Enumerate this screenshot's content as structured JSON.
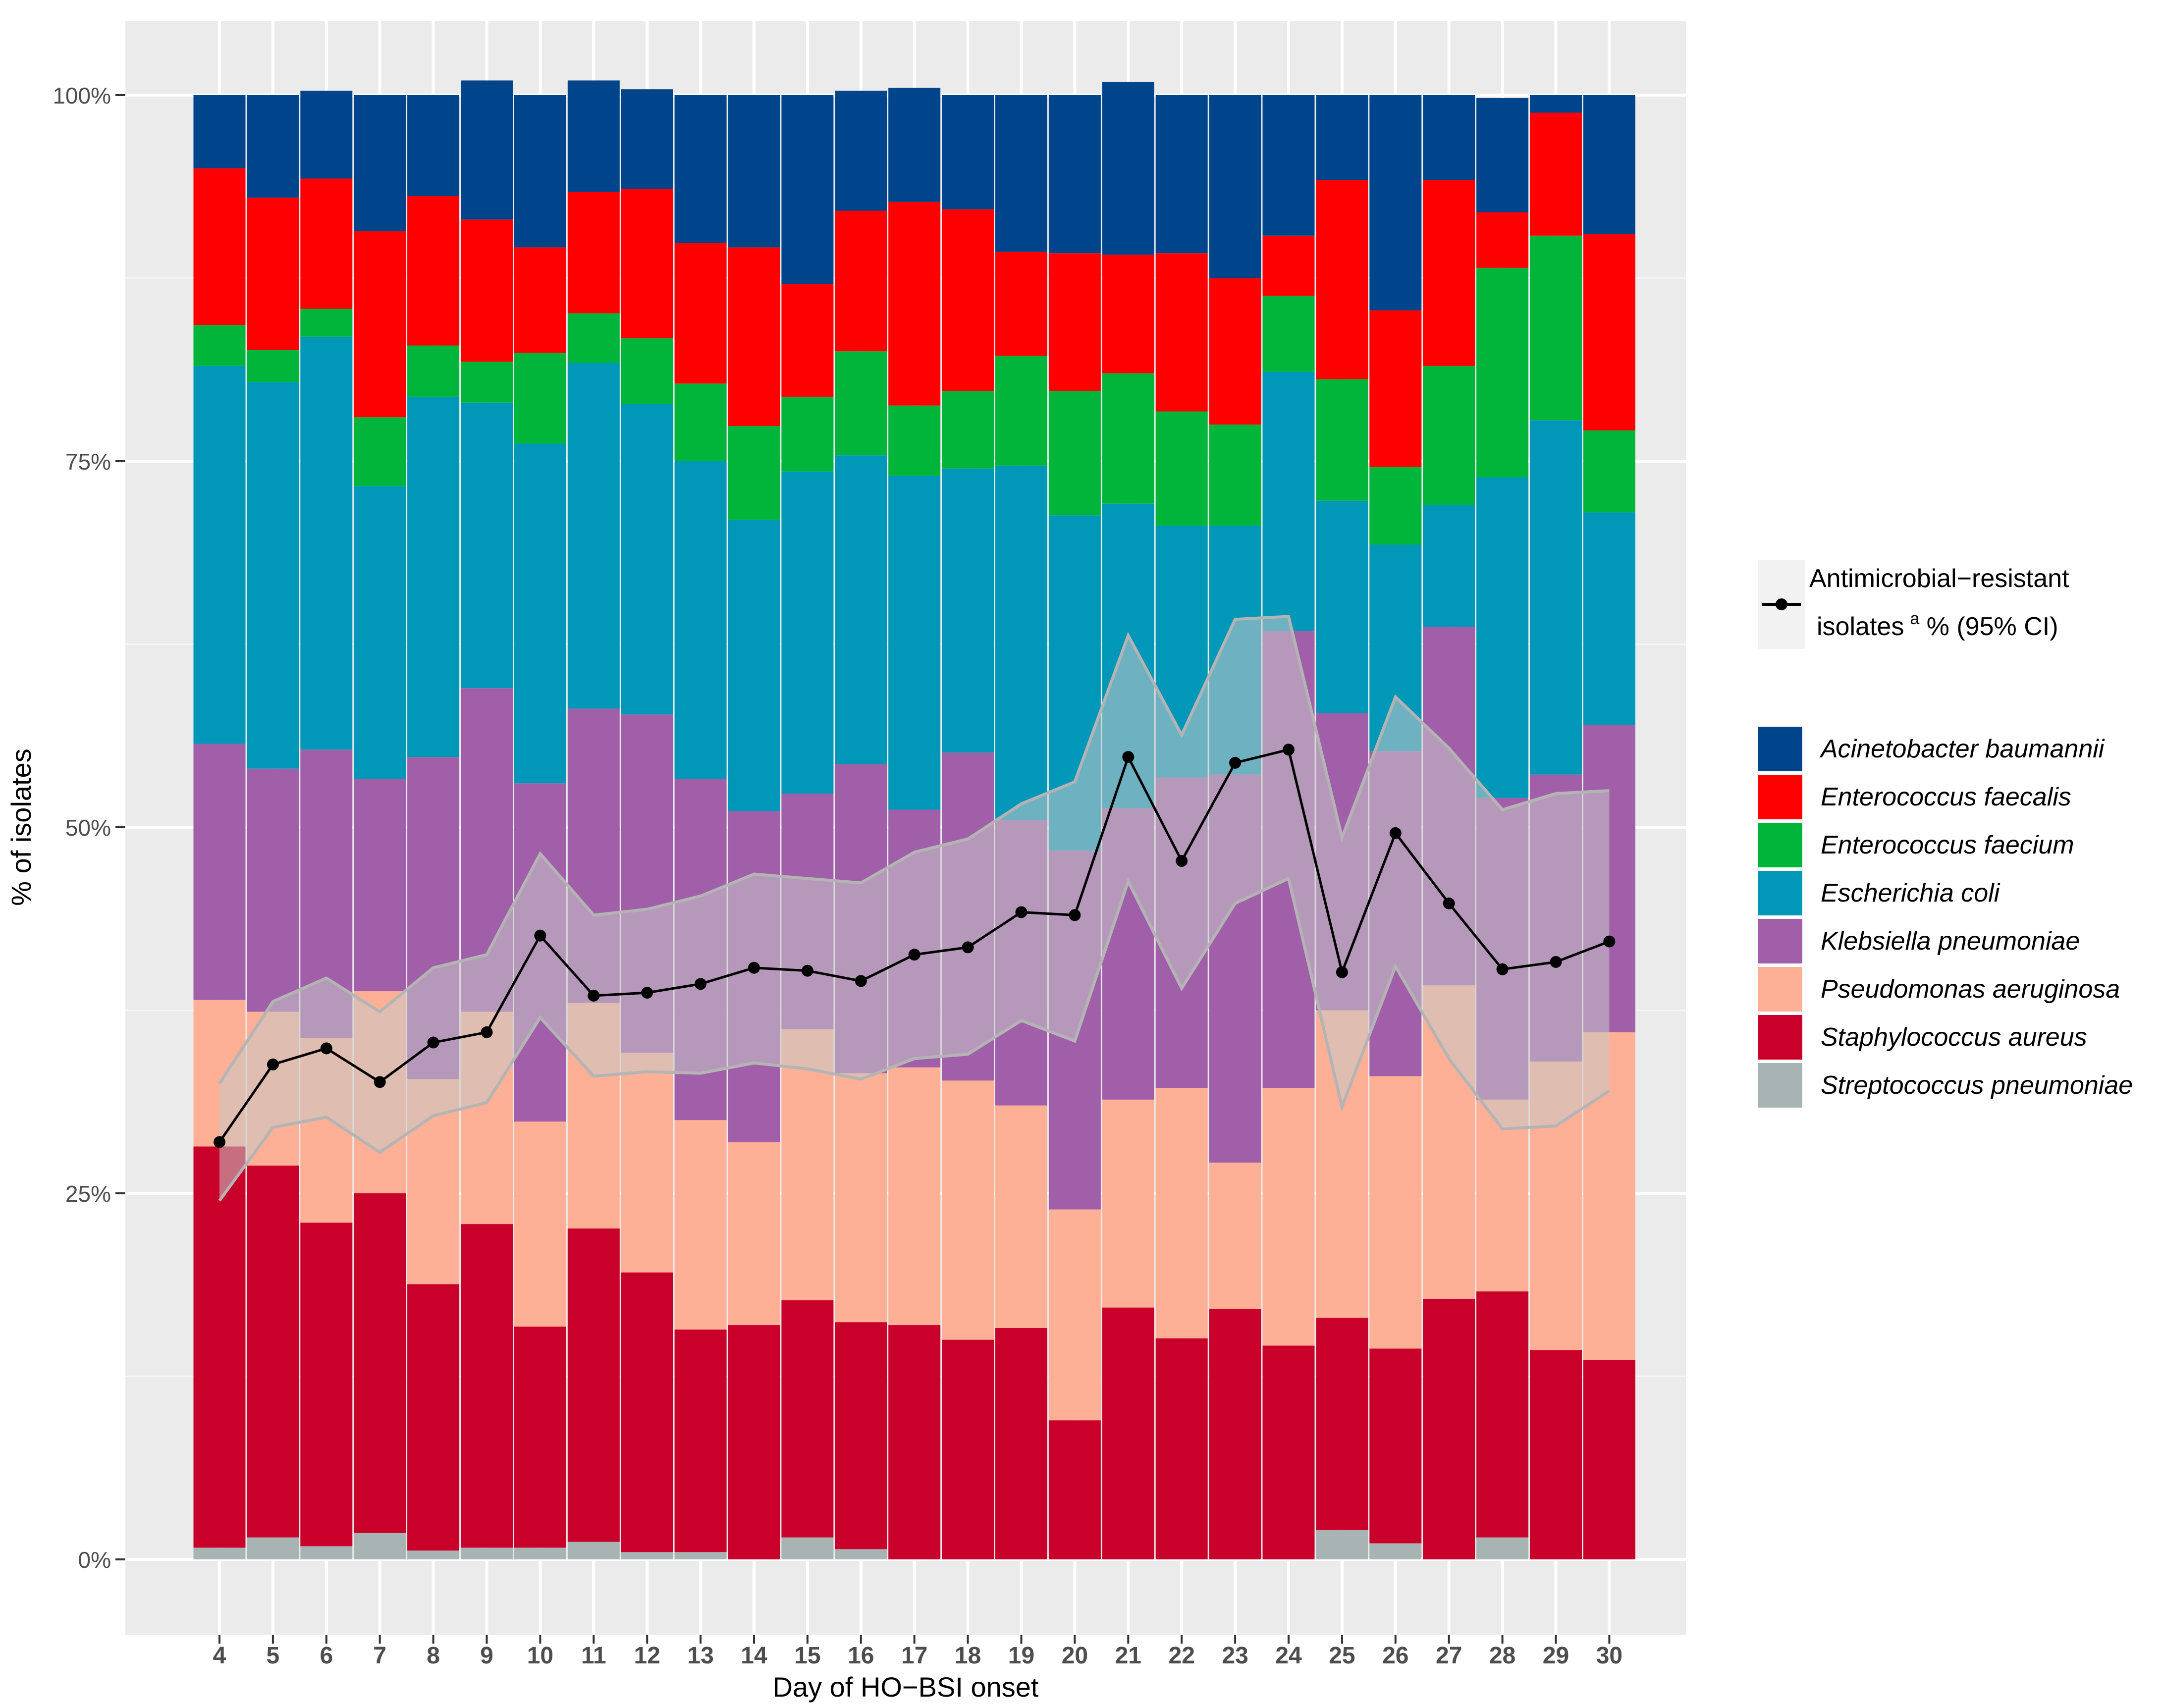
{
  "chart_data": {
    "type": "stacked-bar-with-line",
    "xlabel": "Day of HO−BSI onset",
    "ylabel": "% of isolates",
    "ylim": [
      0,
      100
    ],
    "yticks": [
      0,
      25,
      50,
      75,
      100
    ],
    "ytick_labels": [
      "0%",
      "25%",
      "50%",
      "75%",
      "100%"
    ],
    "categories": [
      "4",
      "5",
      "6",
      "7",
      "8",
      "9",
      "10",
      "11",
      "12",
      "13",
      "14",
      "15",
      "16",
      "17",
      "18",
      "19",
      "20",
      "21",
      "22",
      "23",
      "24",
      "25",
      "26",
      "27",
      "28",
      "29",
      "30"
    ],
    "series_order_bottom_to_top": [
      "Streptococcus pneumoniae",
      "Staphylococcus aureus",
      "Pseudomonas aeruginosa",
      "Klebsiella pneumoniae",
      "Escherichia coli",
      "Enterococcus faecium",
      "Enterococcus faecalis",
      "Acinetobacter baumannii"
    ],
    "series": [
      {
        "name": "Streptococcus pneumoniae",
        "color": "#A8B4B4",
        "values": [
          0.8,
          1.5,
          0.9,
          1.8,
          0.6,
          0.8,
          0.8,
          1.2,
          0.5,
          0.5,
          0,
          1.5,
          0.7,
          0,
          0,
          0,
          0,
          0,
          0,
          0,
          0,
          2.0,
          1.1,
          0,
          1.5,
          0,
          0
        ]
      },
      {
        "name": "Staphylococcus aureus",
        "color": "#C8002A",
        "values": [
          27.4,
          25.4,
          22.1,
          23.2,
          18.2,
          22.1,
          15.1,
          21.4,
          19.1,
          15.2,
          16,
          16.2,
          15.5,
          16,
          15,
          15.8,
          9.5,
          17.2,
          15.1,
          17.1,
          14.6,
          14.5,
          13.3,
          17.8,
          16.8,
          14.3,
          13.6
        ]
      },
      {
        "name": "Pseudomonas aeruginosa",
        "color": "#FDB095",
        "values": [
          10,
          10.5,
          12.6,
          13.8,
          14,
          14.5,
          14,
          15.4,
          15,
          14.3,
          12.5,
          18.5,
          17,
          17.6,
          17.7,
          15.2,
          14.4,
          14.2,
          17.1,
          10,
          17.6,
          21,
          18.6,
          21.4,
          13.1,
          19.7,
          22.4
        ]
      },
      {
        "name": "Klebsiella pneumoniae",
        "color": "#A05FA8",
        "values": [
          17.5,
          16.6,
          19.7,
          14.5,
          22,
          22.1,
          23.1,
          20.1,
          23.1,
          23.3,
          22.6,
          16.1,
          21.1,
          17.6,
          22.4,
          19.5,
          24.5,
          19.9,
          21.2,
          26.5,
          31.2,
          20.3,
          22.2,
          24.5,
          20.6,
          19.6,
          21
        ]
      },
      {
        "name": "Escherichia coli",
        "color": "#0097B9",
        "values": [
          25.8,
          26.4,
          28.2,
          20,
          24.6,
          19.5,
          23.2,
          23.6,
          21.2,
          21.7,
          19.9,
          22,
          21.1,
          22.8,
          19.4,
          24.2,
          22.9,
          20.8,
          17.2,
          17,
          17.7,
          14.5,
          14.1,
          8.3,
          21.9,
          24.2,
          14.5
        ]
      },
      {
        "name": "Enterococcus faecium",
        "color": "#00B53A",
        "values": [
          2.8,
          2.2,
          1.9,
          4.7,
          3.5,
          2.8,
          6.2,
          3.4,
          4.5,
          5.3,
          6.4,
          5.1,
          7.1,
          4.8,
          5.3,
          7.5,
          8.5,
          8.9,
          7.8,
          6.9,
          5.2,
          8.3,
          5.3,
          9.5,
          14.3,
          12.6,
          5.6
        ]
      },
      {
        "name": "Enterococcus faecalis",
        "color": "#FF0000",
        "values": [
          10.7,
          10.4,
          8.9,
          12.7,
          10.2,
          9.7,
          7.2,
          8.3,
          10.2,
          9.6,
          12.2,
          7.7,
          9.6,
          13.9,
          12.4,
          7.1,
          9.4,
          8.1,
          10.8,
          10,
          4.1,
          13.6,
          10.7,
          12.7,
          3.8,
          8.4,
          13.4
        ]
      },
      {
        "name": "Acinetobacter baumannii",
        "color": "#00458C",
        "values": [
          5,
          7,
          6,
          9.3,
          6.9,
          9.5,
          10.4,
          7.6,
          6.8,
          10.1,
          10.4,
          12.9,
          8.2,
          7.8,
          7.8,
          10.7,
          10.8,
          11.8,
          10.8,
          12.5,
          9.6,
          5.8,
          14.7,
          5.8,
          7.8,
          1.2,
          9.5
        ]
      }
    ],
    "line": {
      "name": "Antimicrobial−resistant isolates a % (95% CI)",
      "values": [
        28.5,
        33.8,
        34.9,
        32.6,
        35.3,
        36,
        42.6,
        38.5,
        38.7,
        39.3,
        40.4,
        40.2,
        39.5,
        41.3,
        41.8,
        44.2,
        44,
        54.8,
        47.7,
        54.4,
        55.3,
        40.1,
        49.6,
        44.8,
        40.3,
        40.8,
        42.2
      ],
      "ci_lower": [
        24.5,
        29.5,
        30.2,
        27.8,
        30.3,
        31.2,
        37,
        33,
        33.3,
        33.2,
        33.9,
        33.5,
        32.8,
        34.2,
        34.5,
        36.8,
        35.4,
        46.3,
        39,
        44.8,
        46.5,
        30.9,
        40.5,
        34.2,
        29.4,
        29.6,
        32
      ],
      "ci_upper": [
        32.5,
        38.1,
        39.7,
        37.4,
        40.4,
        41.3,
        48.2,
        44,
        44.4,
        45.3,
        46.8,
        46.5,
        46.2,
        48.3,
        49.2,
        51.6,
        53.1,
        63.1,
        56.3,
        64.2,
        64.4,
        49.3,
        58.9,
        55.4,
        51.2,
        52.3,
        52.5
      ]
    },
    "legend": {
      "position": "right",
      "line_title_part1": "Antimicrobial−resistant",
      "line_title_part2": "isolates",
      "line_title_sup": "a",
      "line_title_part3": " % (95% CI)"
    }
  },
  "colors": {
    "panel": "#EBEBEB",
    "grid_major": "#FFFFFF",
    "grid_minor": "#F5F5F5",
    "ci_band": "#C8C8C8",
    "ci_border": "#B4B4B4",
    "line": "#000000"
  }
}
